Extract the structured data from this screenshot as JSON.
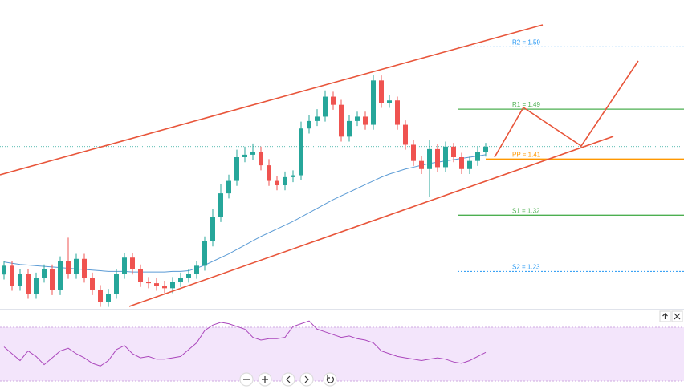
{
  "chart_data": {
    "type": "candlestick",
    "ylim": [
      1.17,
      1.665
    ],
    "up_color": "#26a69a",
    "down_color": "#ef5350",
    "open": [
      1.225,
      1.239,
      1.207,
      1.226,
      1.194,
      1.22,
      1.233,
      1.2,
      1.246,
      1.226,
      1.25,
      1.22,
      1.2,
      1.181,
      1.194,
      1.226,
      1.252,
      1.233,
      1.213,
      1.211,
      1.207,
      1.203,
      1.213,
      1.22,
      1.226,
      1.239,
      1.278,
      1.317,
      1.355,
      1.375,
      1.413,
      1.417,
      1.422,
      1.4,
      1.375,
      1.368,
      1.381,
      1.384,
      1.459,
      1.471,
      1.478,
      1.51,
      1.497,
      1.446,
      1.471,
      1.478,
      1.465,
      1.536,
      1.5,
      1.504,
      1.465,
      1.433,
      1.407,
      1.394,
      1.426,
      1.397,
      1.43,
      1.413,
      1.394,
      1.407,
      1.422
    ],
    "high": [
      1.247,
      1.247,
      1.234,
      1.234,
      1.228,
      1.241,
      1.241,
      1.254,
      1.284,
      1.258,
      1.258,
      1.228,
      1.208,
      1.202,
      1.234,
      1.26,
      1.26,
      1.241,
      1.221,
      1.219,
      1.215,
      1.221,
      1.228,
      1.234,
      1.247,
      1.286,
      1.33,
      1.37,
      1.385,
      1.425,
      1.43,
      1.435,
      1.43,
      1.41,
      1.383,
      1.39,
      1.392,
      1.47,
      1.48,
      1.49,
      1.52,
      1.518,
      1.505,
      1.48,
      1.486,
      1.486,
      1.545,
      1.544,
      1.512,
      1.51,
      1.472,
      1.44,
      1.415,
      1.44,
      1.434,
      1.438,
      1.436,
      1.42,
      1.414,
      1.43,
      1.436
    ],
    "low": [
      1.217,
      1.199,
      1.199,
      1.186,
      1.186,
      1.212,
      1.192,
      1.192,
      1.218,
      1.218,
      1.212,
      1.192,
      1.173,
      1.173,
      1.186,
      1.218,
      1.225,
      1.205,
      1.203,
      1.199,
      1.195,
      1.195,
      1.205,
      1.212,
      1.218,
      1.231,
      1.27,
      1.309,
      1.347,
      1.367,
      1.405,
      1.409,
      1.392,
      1.367,
      1.36,
      1.36,
      1.373,
      1.376,
      1.451,
      1.463,
      1.47,
      1.489,
      1.438,
      1.438,
      1.463,
      1.457,
      1.457,
      1.492,
      1.492,
      1.457,
      1.425,
      1.399,
      1.386,
      1.349,
      1.389,
      1.389,
      1.405,
      1.386,
      1.386,
      1.399,
      1.414
    ],
    "close": [
      1.239,
      1.207,
      1.226,
      1.194,
      1.22,
      1.233,
      1.2,
      1.246,
      1.226,
      1.25,
      1.22,
      1.2,
      1.181,
      1.194,
      1.226,
      1.252,
      1.233,
      1.213,
      1.211,
      1.207,
      1.203,
      1.213,
      1.22,
      1.226,
      1.239,
      1.278,
      1.317,
      1.355,
      1.375,
      1.413,
      1.417,
      1.422,
      1.4,
      1.375,
      1.368,
      1.381,
      1.384,
      1.459,
      1.471,
      1.478,
      1.51,
      1.497,
      1.446,
      1.471,
      1.478,
      1.465,
      1.536,
      1.5,
      1.504,
      1.465,
      1.433,
      1.407,
      1.394,
      1.426,
      1.397,
      1.43,
      1.413,
      1.394,
      1.407,
      1.422,
      1.43
    ],
    "moving_average": {
      "color": "#5b9bd5",
      "values": [
        1.245,
        1.243,
        1.241,
        1.24,
        1.239,
        1.238,
        1.237,
        1.236,
        1.235,
        1.234,
        1.233,
        1.232,
        1.231,
        1.23,
        1.23,
        1.23,
        1.229,
        1.229,
        1.229,
        1.229,
        1.229,
        1.23,
        1.23,
        1.231,
        1.235,
        1.24,
        1.246,
        1.252,
        1.258,
        1.265,
        1.272,
        1.279,
        1.286,
        1.292,
        1.298,
        1.304,
        1.31,
        1.317,
        1.324,
        1.331,
        1.338,
        1.345,
        1.351,
        1.357,
        1.363,
        1.369,
        1.375,
        1.381,
        1.386,
        1.39,
        1.394,
        1.397,
        1.4,
        1.403,
        1.405,
        1.407,
        1.409,
        1.411,
        1.413,
        1.415,
        1.417
      ]
    },
    "pivots": [
      {
        "label": "R2 = 1.59",
        "value": 1.59,
        "color": "#2196f3",
        "dotted": true
      },
      {
        "label": "R1 = 1.49",
        "value": 1.49,
        "color": "#4caf50",
        "dotted": false
      },
      {
        "label": "PP = 1.41",
        "value": 1.41,
        "color": "#ff9800",
        "dotted": false
      },
      {
        "label": "S1 = 1.32",
        "value": 1.32,
        "color": "#4caf50",
        "dotted": false
      },
      {
        "label": "S2 = 1.23",
        "value": 1.23,
        "color": "#2196f3",
        "dotted": true
      }
    ],
    "rsi": {
      "color": "#ab47bc",
      "ylim": [
        30,
        80
      ],
      "values": [
        55,
        50,
        45,
        52,
        48,
        42,
        47,
        52,
        54,
        50,
        47,
        43,
        41,
        45,
        53,
        56,
        50,
        47,
        48,
        46,
        46,
        47,
        48,
        53,
        58,
        67,
        71,
        73,
        72,
        70,
        68,
        62,
        60,
        61,
        61,
        62,
        70,
        72,
        74,
        68,
        66,
        64,
        62,
        63,
        61,
        60,
        58,
        52,
        50,
        48,
        47,
        46,
        45,
        46,
        47,
        46,
        44,
        43,
        45,
        48,
        51
      ]
    }
  }
}
